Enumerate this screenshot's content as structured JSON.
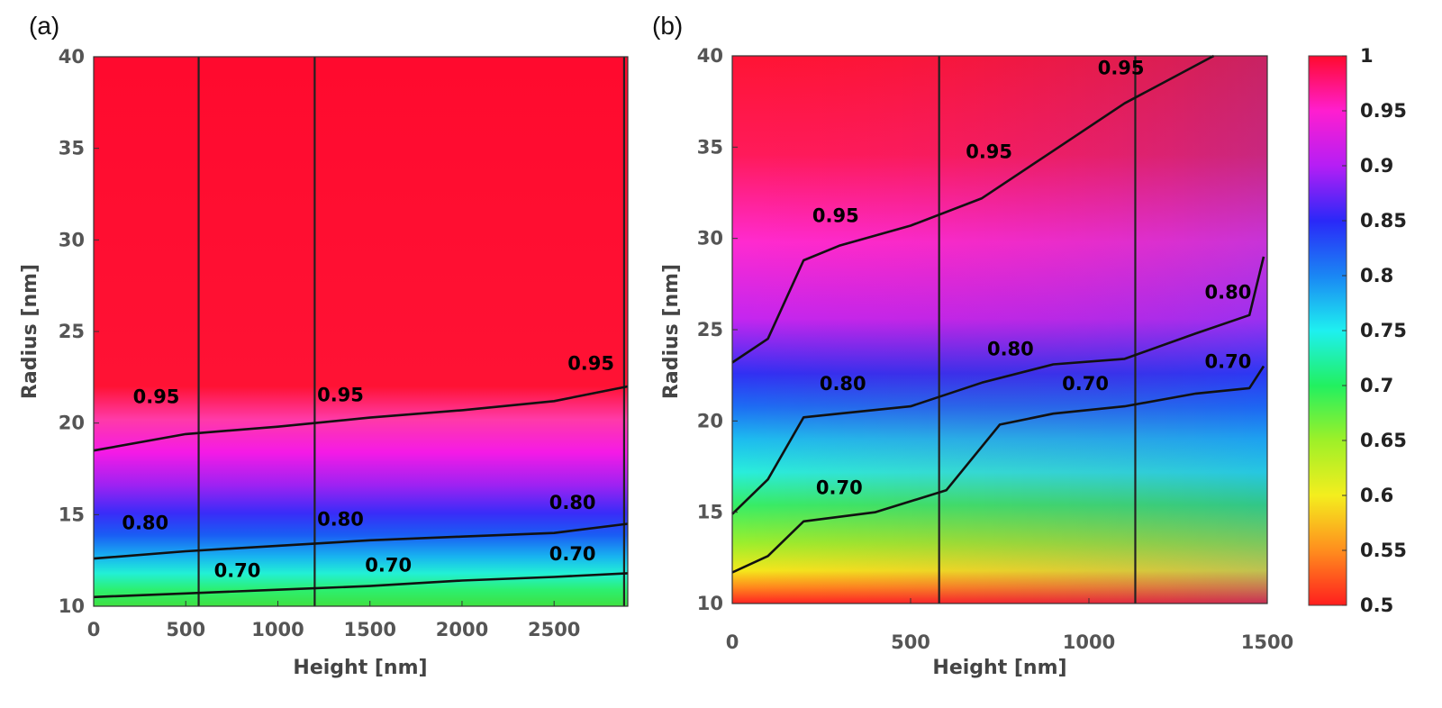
{
  "chart_data": [
    {
      "panel": "(a)",
      "type": "heatmap",
      "xlabel": "Height [nm]",
      "ylabel": "Radius [nm]",
      "xlim": [
        0,
        2900
      ],
      "ylim": [
        10,
        40
      ],
      "xticks": [
        "0",
        "500",
        "1000",
        "1500",
        "2000",
        "2500"
      ],
      "xtick_values": [
        0,
        500,
        1000,
        1500,
        2000,
        2500
      ],
      "yticks": [
        "10",
        "15",
        "20",
        "25",
        "30",
        "35",
        "40"
      ],
      "ytick_values": [
        10,
        15,
        20,
        25,
        30,
        35,
        40
      ],
      "vertical_lines_x": [
        570,
        1200,
        2880
      ],
      "contours": [
        {
          "level": "0.95",
          "x": [
            0,
            500,
            1000,
            1500,
            2000,
            2500,
            2900
          ],
          "y": [
            18.5,
            19.4,
            19.8,
            20.3,
            20.7,
            21.2,
            22.0
          ]
        },
        {
          "level": "0.80",
          "x": [
            0,
            500,
            1000,
            1500,
            2000,
            2500,
            2900
          ],
          "y": [
            12.6,
            13.0,
            13.3,
            13.6,
            13.8,
            14.0,
            14.5
          ]
        },
        {
          "level": "0.70",
          "x": [
            0,
            500,
            1000,
            1500,
            2000,
            2500,
            2900
          ],
          "y": [
            10.5,
            10.7,
            10.9,
            11.1,
            11.4,
            11.6,
            11.8
          ]
        }
      ],
      "contour_labels": [
        {
          "text": "0.95",
          "x": 340,
          "y": 21.1
        },
        {
          "text": "0.95",
          "x": 1340,
          "y": 21.2
        },
        {
          "text": "0.95",
          "x": 2700,
          "y": 22.9
        },
        {
          "text": "0.80",
          "x": 280,
          "y": 14.2
        },
        {
          "text": "0.80",
          "x": 1340,
          "y": 14.4
        },
        {
          "text": "0.80",
          "x": 2600,
          "y": 15.3
        },
        {
          "text": "0.70",
          "x": 780,
          "y": 11.6
        },
        {
          "text": "0.70",
          "x": 1600,
          "y": 11.9
        },
        {
          "text": "0.70",
          "x": 2600,
          "y": 12.5
        }
      ]
    },
    {
      "panel": "(b)",
      "type": "heatmap",
      "xlabel": "Height [nm]",
      "ylabel": "Radius [nm]",
      "xlim": [
        0,
        1500
      ],
      "ylim": [
        10,
        40
      ],
      "xticks": [
        "0",
        "500",
        "1000",
        "1500"
      ],
      "xtick_values": [
        0,
        500,
        1000,
        1500
      ],
      "yticks": [
        "10",
        "15",
        "20",
        "25",
        "30",
        "35",
        "40"
      ],
      "ytick_values": [
        10,
        15,
        20,
        25,
        30,
        35,
        40
      ],
      "vertical_lines_x": [
        580,
        1130
      ],
      "contours": [
        {
          "level": "0.95",
          "x": [
            0,
            100,
            200,
            300,
            500,
            700,
            900,
            1100,
            1350
          ],
          "y": [
            23.2,
            24.5,
            28.8,
            29.6,
            30.7,
            32.2,
            34.8,
            37.4,
            40.0
          ]
        },
        {
          "level": "0.80",
          "x": [
            0,
            100,
            200,
            300,
            500,
            700,
            900,
            1100,
            1300,
            1450,
            1490
          ],
          "y": [
            14.9,
            16.8,
            20.2,
            20.4,
            20.8,
            22.1,
            23.1,
            23.4,
            24.8,
            25.8,
            29.0
          ]
        },
        {
          "level": "0.70",
          "x": [
            0,
            100,
            200,
            400,
            600,
            750,
            900,
            1100,
            1300,
            1450,
            1490
          ],
          "y": [
            11.7,
            12.6,
            14.5,
            15.0,
            16.2,
            19.8,
            20.4,
            20.8,
            21.5,
            21.8,
            23.0
          ]
        }
      ],
      "contour_labels": [
        {
          "text": "0.95",
          "x": 290,
          "y": 30.9
        },
        {
          "text": "0.95",
          "x": 720,
          "y": 34.4
        },
        {
          "text": "0.95",
          "x": 1090,
          "y": 39.0
        },
        {
          "text": "0.80",
          "x": 310,
          "y": 21.7
        },
        {
          "text": "0.80",
          "x": 780,
          "y": 23.6
        },
        {
          "text": "0.80",
          "x": 1390,
          "y": 26.7
        },
        {
          "text": "0.70",
          "x": 300,
          "y": 16.0
        },
        {
          "text": "0.70",
          "x": 990,
          "y": 21.7
        },
        {
          "text": "0.70",
          "x": 1390,
          "y": 22.9
        }
      ]
    }
  ],
  "colorbar": {
    "ticks": [
      "1",
      "0.95",
      "0.9",
      "0.85",
      "0.8",
      "0.75",
      "0.7",
      "0.65",
      "0.6",
      "0.55",
      "0.5"
    ],
    "tick_values": [
      1,
      0.95,
      0.9,
      0.85,
      0.8,
      0.75,
      0.7,
      0.65,
      0.6,
      0.55,
      0.5
    ],
    "range": [
      0.5,
      1
    ]
  }
}
